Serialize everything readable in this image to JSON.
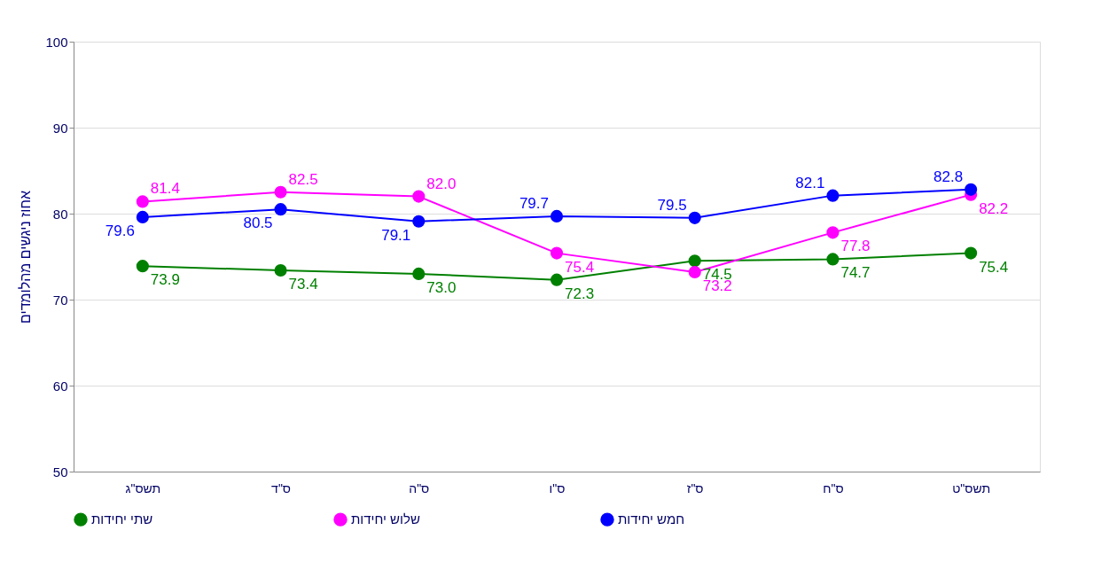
{
  "chart_data": {
    "type": "line",
    "ylabel": "אחוז ניגשים מהלומדים",
    "categories": [
      "תשס\"ג",
      "ס\"ד",
      "ס\"ה",
      "ס\"ו",
      "ס\"ז",
      "ס\"ח",
      "תשס\"ט"
    ],
    "series": [
      {
        "name": "שתי יחידות",
        "color": "#008000",
        "values": [
          73.9,
          73.4,
          73.0,
          72.3,
          74.5,
          74.7,
          75.4
        ],
        "value_labels": [
          "73.9",
          "73.4",
          "73.0",
          "72.3",
          "74.5",
          "74.7",
          "75.4"
        ]
      },
      {
        "name": "שלוש יחידות",
        "color": "#ff00ff",
        "values": [
          81.4,
          82.5,
          82.0,
          75.4,
          73.2,
          77.8,
          82.2
        ],
        "value_labels": [
          "81.4",
          "82.5",
          "82.0",
          "75.4",
          "73.2",
          "77.8",
          "82.2"
        ]
      },
      {
        "name": "חמש יחידות",
        "color": "#0000ff",
        "values": [
          79.6,
          80.5,
          79.1,
          79.7,
          79.5,
          82.1,
          82.8
        ],
        "value_labels": [
          "79.6",
          "80.5",
          "79.1",
          "79.7",
          "79.5",
          "82.1",
          "82.8"
        ]
      }
    ],
    "ylim": [
      50,
      100
    ],
    "yticks": [
      50,
      60,
      70,
      80,
      90,
      100
    ],
    "grid": "y",
    "legend": "bottom",
    "marker": "circle",
    "line_style": "solid"
  }
}
